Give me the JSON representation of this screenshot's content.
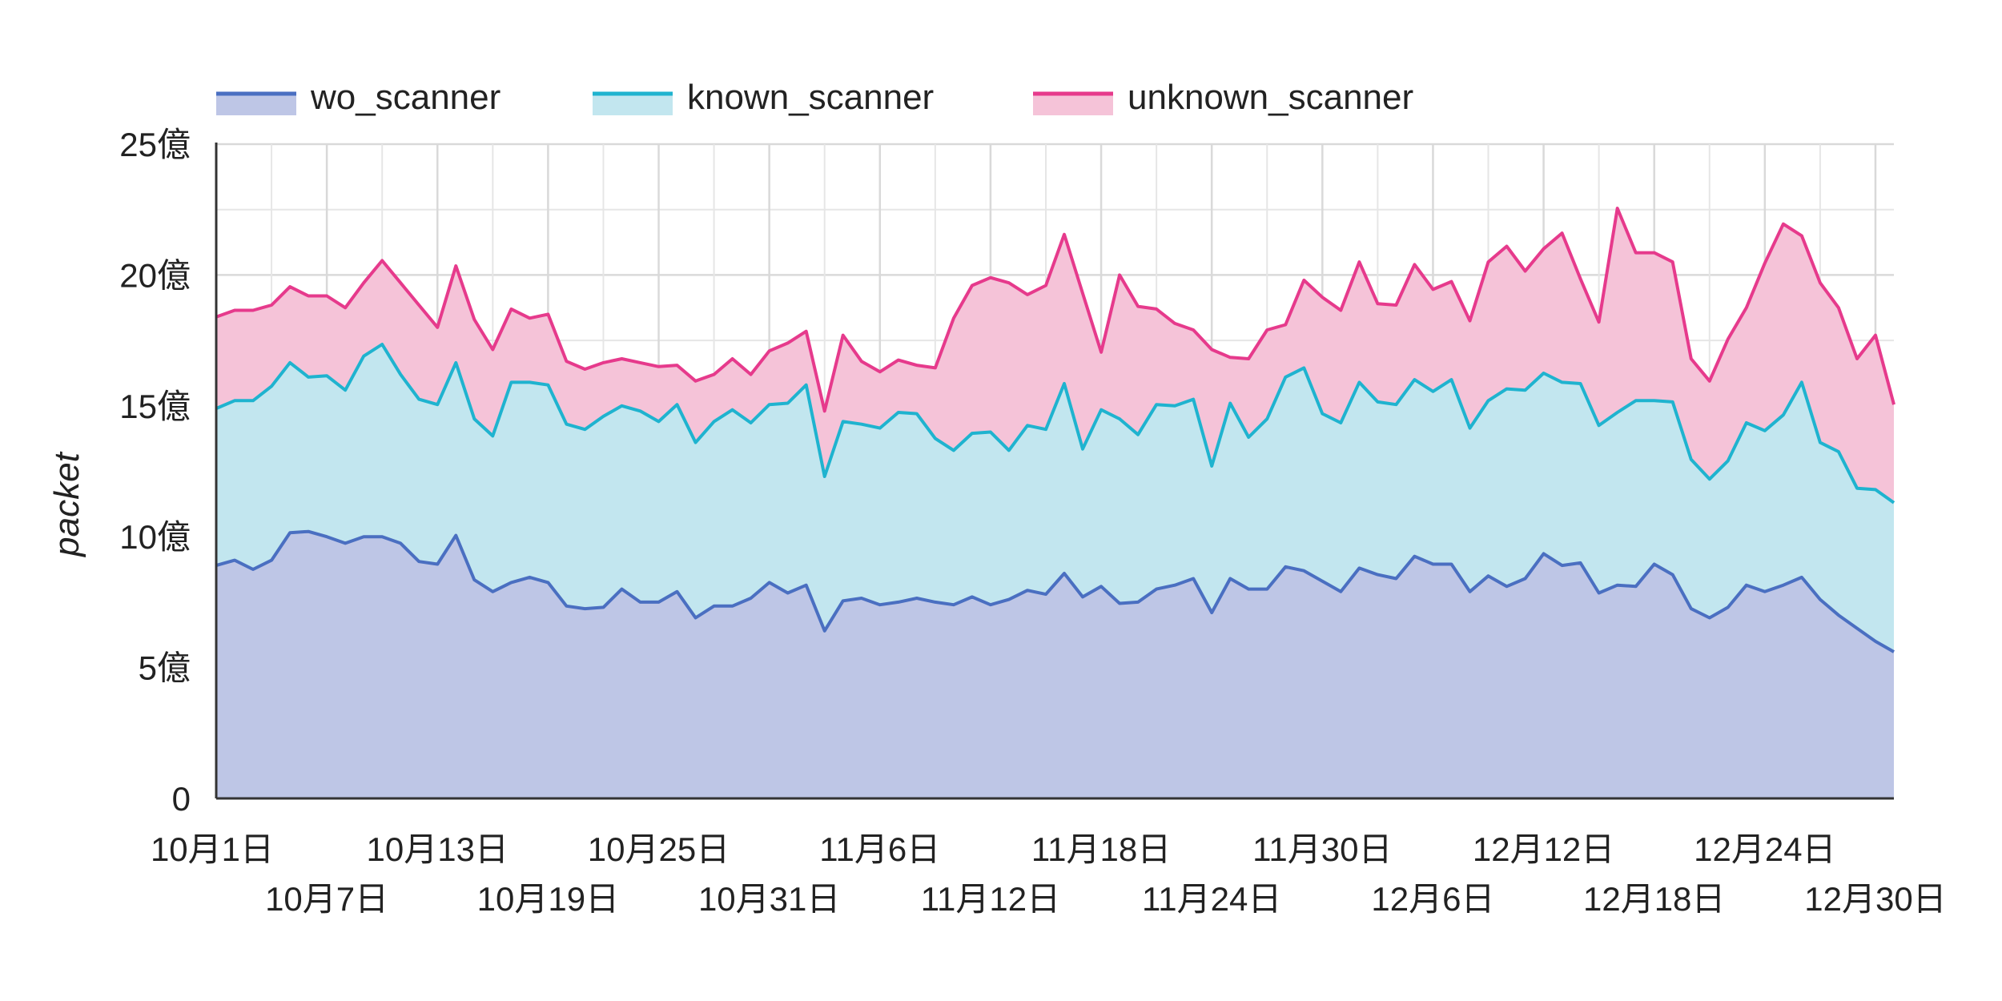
{
  "chart_data": {
    "type": "area",
    "stacked": true,
    "ylabel": "packet",
    "ylim": [
      0,
      2500000000
    ],
    "y_ticks": [
      {
        "value": 0,
        "label": "0"
      },
      {
        "value": 500000000,
        "label": "5億"
      },
      {
        "value": 1000000000,
        "label": "10億"
      },
      {
        "value": 1500000000,
        "label": "15億"
      },
      {
        "value": 2000000000,
        "label": "20億"
      },
      {
        "value": 2500000000,
        "label": "25億"
      }
    ],
    "x_start": "2019-10-01",
    "x_ticks": [
      {
        "index": 0,
        "label": "10月1日",
        "row": 1
      },
      {
        "index": 6,
        "label": "10月7日",
        "row": 2
      },
      {
        "index": 12,
        "label": "10月13日",
        "row": 1
      },
      {
        "index": 18,
        "label": "10月19日",
        "row": 2
      },
      {
        "index": 24,
        "label": "10月25日",
        "row": 1
      },
      {
        "index": 30,
        "label": "10月31日",
        "row": 2
      },
      {
        "index": 36,
        "label": "11月6日",
        "row": 1
      },
      {
        "index": 42,
        "label": "11月12日",
        "row": 2
      },
      {
        "index": 48,
        "label": "11月18日",
        "row": 1
      },
      {
        "index": 54,
        "label": "11月24日",
        "row": 2
      },
      {
        "index": 60,
        "label": "11月30日",
        "row": 1
      },
      {
        "index": 66,
        "label": "12月6日",
        "row": 2
      },
      {
        "index": 72,
        "label": "12月12日",
        "row": 1
      },
      {
        "index": 78,
        "label": "12月18日",
        "row": 2
      },
      {
        "index": 84,
        "label": "12月24日",
        "row": 1
      },
      {
        "index": 90,
        "label": "12月30日",
        "row": 2
      }
    ],
    "legend_position": "top-left",
    "grid": true,
    "series": [
      {
        "name": "wo_scanner",
        "line_color": "#4a6fc1",
        "fill_color": "#bec6e6",
        "values": [
          890,
          910,
          875,
          910,
          1015,
          1020,
          1000,
          975,
          1000,
          1000,
          975,
          905,
          895,
          1005,
          835,
          790,
          825,
          845,
          825,
          735,
          725,
          730,
          800,
          750,
          750,
          790,
          690,
          735,
          735,
          765,
          825,
          785,
          815,
          640,
          755,
          765,
          740,
          750,
          765,
          750,
          740,
          770,
          740,
          760,
          795,
          780,
          860,
          770,
          810,
          745,
          750,
          800,
          815,
          840,
          710,
          840,
          800,
          800,
          885,
          870,
          830,
          790,
          880,
          855,
          840,
          925,
          895,
          895,
          790,
          850,
          810,
          840,
          935,
          890,
          900,
          785,
          815,
          810,
          895,
          855,
          725,
          690,
          730,
          815,
          790,
          815,
          845,
          760,
          700,
          650,
          600,
          560
        ]
      },
      {
        "name": "known_scanner",
        "line_color": "#1fb3cf",
        "fill_color": "#c2e6ef",
        "values": [
          600,
          610,
          645,
          665,
          650,
          590,
          615,
          585,
          690,
          735,
          645,
          620,
          610,
          660,
          615,
          595,
          765,
          745,
          755,
          695,
          685,
          730,
          700,
          730,
          690,
          715,
          670,
          705,
          750,
          670,
          680,
          725,
          765,
          590,
          685,
          665,
          675,
          725,
          705,
          625,
          590,
          625,
          660,
          570,
          630,
          630,
          725,
          565,
          675,
          705,
          640,
          705,
          685,
          685,
          560,
          670,
          580,
          650,
          725,
          775,
          640,
          645,
          710,
          660,
          665,
          675,
          660,
          705,
          625,
          670,
          755,
          720,
          690,
          700,
          685,
          640,
          660,
          710,
          625,
          660,
          570,
          530,
          560,
          620,
          615,
          650,
          745,
          600,
          625,
          535,
          580,
          570
        ]
      },
      {
        "name": "unknown_scanner",
        "line_color": "#e63a8c",
        "fill_color": "#f5c3d8",
        "values": [
          350,
          345,
          345,
          310,
          290,
          310,
          305,
          315,
          280,
          320,
          350,
          360,
          295,
          370,
          380,
          330,
          280,
          245,
          270,
          240,
          230,
          205,
          180,
          185,
          210,
          150,
          235,
          180,
          195,
          185,
          205,
          230,
          205,
          250,
          330,
          240,
          215,
          200,
          185,
          270,
          505,
          565,
          590,
          640,
          500,
          550,
          570,
          595,
          220,
          550,
          490,
          365,
          315,
          265,
          445,
          175,
          300,
          340,
          200,
          335,
          445,
          430,
          460,
          375,
          380,
          440,
          390,
          375,
          410,
          530,
          545,
          455,
          475,
          570,
          400,
          395,
          780,
          565,
          565,
          535,
          385,
          375,
          465,
          440,
          640,
          730,
          560,
          610,
          550,
          495,
          590,
          375
        ]
      }
    ],
    "value_unit_note": "values in millions of packets"
  }
}
